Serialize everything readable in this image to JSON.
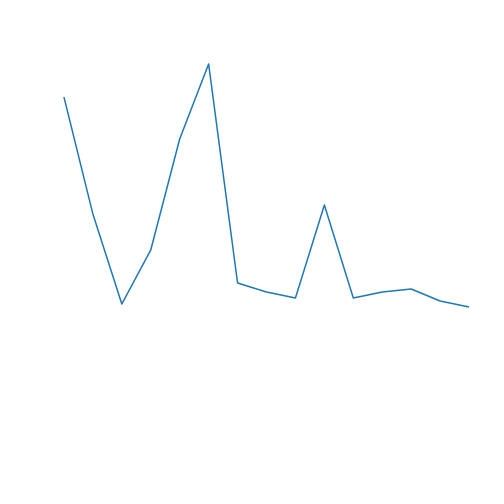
{
  "chart_data": {
    "type": "line",
    "x": [
      1,
      2,
      3,
      4,
      5,
      6,
      7,
      8,
      9,
      10,
      11,
      12,
      13,
      14,
      15
    ],
    "series": [
      {
        "values": [
          12.0,
          8.1,
          5.1,
          6.9,
          10.6,
          13.1,
          5.8,
          5.5,
          5.3,
          8.4,
          5.3,
          5.5,
          5.6,
          5.2,
          5.0
        ],
        "color": "#1f77b4"
      }
    ],
    "xlim": [
      0,
      16
    ],
    "ylim": [
      -0.5,
      14.5
    ],
    "axes_visible": false,
    "grid": false,
    "title": "",
    "xlabel": "",
    "ylabel": ""
  }
}
